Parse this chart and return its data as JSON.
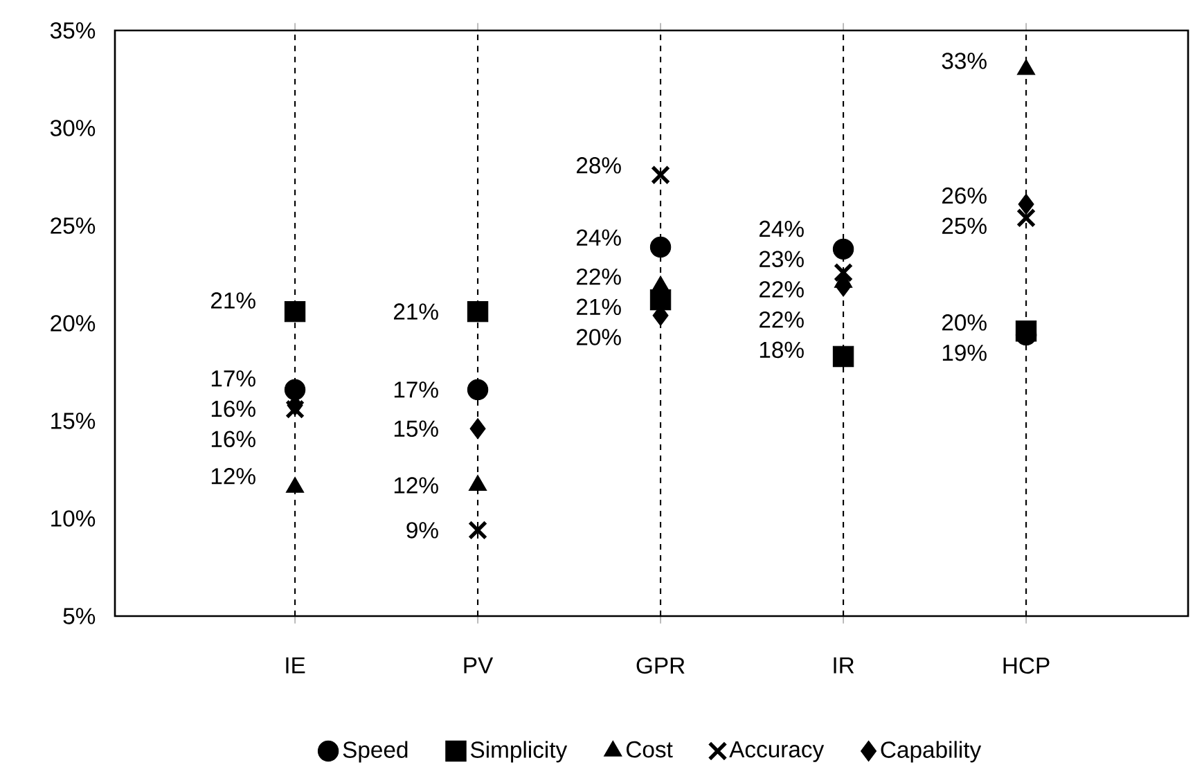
{
  "chart_data": {
    "type": "scatter",
    "categories": [
      "IE",
      "PV",
      "GPR",
      "IR",
      "HCP"
    ],
    "series": [
      {
        "name": "Speed",
        "color": "#000000",
        "marker": "circle",
        "values": [
          16.6,
          16.6,
          23.9,
          23.8,
          19.4
        ],
        "value_labels": [
          "17%",
          "17%",
          "24%",
          "24%",
          "19%"
        ]
      },
      {
        "name": "Simplicity",
        "color": "#000000",
        "marker": "square",
        "values": [
          20.6,
          20.6,
          21.2,
          18.3,
          19.6
        ],
        "value_labels": [
          "21%",
          "21%",
          "21%",
          "18%",
          "20%"
        ]
      },
      {
        "name": "Cost",
        "color": "#000000",
        "marker": "triangle",
        "values": [
          11.6,
          11.7,
          21.9,
          22.1,
          33.0
        ],
        "value_labels": [
          "12%",
          "12%",
          "22%",
          "22%",
          "33%"
        ]
      },
      {
        "name": "Accuracy",
        "color": "#000000",
        "marker": "cross",
        "values": [
          15.6,
          9.4,
          27.6,
          22.6,
          25.4
        ],
        "value_labels": [
          "16%",
          "9%",
          "28%",
          "23%",
          "25%"
        ]
      },
      {
        "name": "Capability",
        "color": "#000000",
        "marker": "diamond",
        "values": [
          15.8,
          14.6,
          20.4,
          21.9,
          26.1
        ],
        "value_labels": [
          "16%",
          "15%",
          "20%",
          "22%",
          "26%"
        ]
      }
    ],
    "ylim": [
      5,
      35
    ],
    "yticks": [
      {
        "value": 5,
        "label": "5%"
      },
      {
        "value": 10,
        "label": "10%"
      },
      {
        "value": 15,
        "label": "15%"
      },
      {
        "value": 20,
        "label": "20%"
      },
      {
        "value": 25,
        "label": "25%"
      },
      {
        "value": 30,
        "label": "30%"
      },
      {
        "value": 35,
        "label": "35%"
      }
    ],
    "grid": "x",
    "legend": "bottom"
  }
}
